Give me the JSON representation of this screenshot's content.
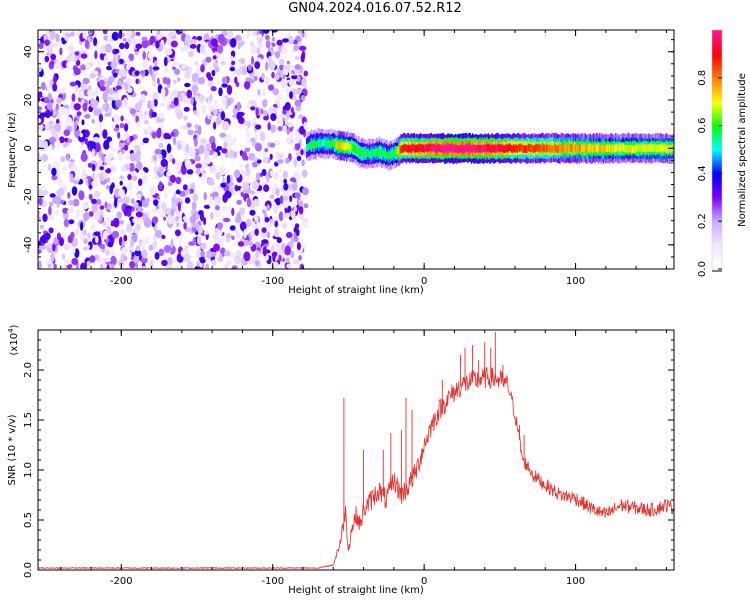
{
  "title": "GN04.2024.016.07.52.R12",
  "chart_data": [
    {
      "type": "heatmap",
      "xlabel": "Height of straight line (km)",
      "ylabel": "Frequency (Hz)",
      "xlim": [
        -255,
        165
      ],
      "ylim": [
        -50,
        49
      ],
      "xticks": [
        -200,
        -100,
        0,
        100
      ],
      "yticks": [
        -40,
        -20,
        0,
        20,
        40
      ],
      "grid": false,
      "colorbar": {
        "label": "Normalized spectral amplitude",
        "range": [
          0.0,
          1.0
        ],
        "ticks": [
          0.0,
          0.2,
          0.4,
          0.6,
          0.8
        ],
        "colormap": [
          "#ffffff",
          "#f0e6ff",
          "#c9a8ff",
          "#7b00ff",
          "#0000ff",
          "#00ffff",
          "#00ff00",
          "#ffff00",
          "#ff8000",
          "#ff0000",
          "#ff1493"
        ]
      },
      "noise_region_x": [
        -255,
        -78
      ],
      "signal_band": [
        {
          "x": -78,
          "y": 0.5,
          "amp": 0.5
        },
        {
          "x": -75,
          "y": 1.5,
          "amp": 0.6
        },
        {
          "x": -70,
          "y": 2.0,
          "amp": 0.55
        },
        {
          "x": -62,
          "y": 2.0,
          "amp": 0.55
        },
        {
          "x": -56,
          "y": 1.0,
          "amp": 0.75
        },
        {
          "x": -48,
          "y": 0.5,
          "amp": 0.65
        },
        {
          "x": -42,
          "y": -2.0,
          "amp": 0.6
        },
        {
          "x": -36,
          "y": -2.5,
          "amp": 0.55
        },
        {
          "x": -30,
          "y": -1.5,
          "amp": 0.6
        },
        {
          "x": -24,
          "y": -3.0,
          "amp": 0.55
        },
        {
          "x": -19,
          "y": -2.0,
          "amp": 0.6
        },
        {
          "x": -15,
          "y": 0.0,
          "amp": 0.9
        },
        {
          "x": 0,
          "y": 0.0,
          "amp": 0.95
        },
        {
          "x": 14,
          "y": 0.0,
          "amp": 1.0
        },
        {
          "x": 30,
          "y": 0.0,
          "amp": 1.0
        },
        {
          "x": 50,
          "y": 0.0,
          "amp": 0.95
        },
        {
          "x": 70,
          "y": 0.0,
          "amp": 0.85
        },
        {
          "x": 90,
          "y": 0.0,
          "amp": 0.8
        },
        {
          "x": 110,
          "y": 0.0,
          "amp": 0.75
        },
        {
          "x": 130,
          "y": 0.0,
          "amp": 0.7
        },
        {
          "x": 150,
          "y": 0.0,
          "amp": 0.7
        },
        {
          "x": 165,
          "y": 0.0,
          "amp": 0.7
        }
      ]
    },
    {
      "type": "line",
      "xlabel": "Height of straight line (km)",
      "ylabel": "SNR (10 * v/v)",
      "yscale_label": "(x10",
      "yscale_exp": "4",
      "yscale_close": ")",
      "xlim": [
        -255,
        165
      ],
      "ylim": [
        0,
        2.4
      ],
      "xticks": [
        -200,
        -100,
        0,
        100
      ],
      "yticks": [
        0.0,
        0.5,
        1.0,
        1.5,
        2.0
      ],
      "grid": false,
      "series": [
        {
          "color": "#e8302a",
          "x": [
            -255,
            -200,
            -150,
            -100,
            -70,
            -60,
            -55,
            -52,
            -50,
            -48,
            -45,
            -42,
            -40,
            -35,
            -30,
            -25,
            -20,
            -15,
            -10,
            -5,
            0,
            5,
            10,
            15,
            20,
            25,
            30,
            35,
            40,
            45,
            50,
            55,
            58,
            62,
            65,
            68,
            72,
            80,
            90,
            100,
            110,
            120,
            130,
            140,
            150,
            160,
            165
          ],
          "y": [
            0.02,
            0.02,
            0.02,
            0.02,
            0.02,
            0.05,
            0.3,
            0.6,
            0.2,
            0.4,
            0.55,
            0.45,
            0.6,
            0.7,
            0.8,
            0.7,
            0.9,
            0.75,
            0.85,
            1.0,
            1.25,
            1.45,
            1.6,
            1.7,
            1.78,
            1.85,
            1.88,
            1.9,
            1.92,
            1.92,
            1.9,
            1.85,
            1.7,
            1.4,
            1.1,
            1.05,
            0.95,
            0.85,
            0.75,
            0.72,
            0.62,
            0.55,
            0.65,
            0.62,
            0.6,
            0.65,
            0.62
          ]
        }
      ],
      "spikes": [
        {
          "x": -53,
          "y": 1.72
        },
        {
          "x": -40,
          "y": 1.2
        },
        {
          "x": -27,
          "y": 1.2
        },
        {
          "x": -22,
          "y": 1.37
        },
        {
          "x": -15,
          "y": 1.4
        },
        {
          "x": -12,
          "y": 1.72
        },
        {
          "x": -8,
          "y": 1.6
        },
        {
          "x": 12,
          "y": 1.9
        },
        {
          "x": 24,
          "y": 2.15
        },
        {
          "x": 27,
          "y": 2.22
        },
        {
          "x": 32,
          "y": 2.25
        },
        {
          "x": 36,
          "y": 2.1
        },
        {
          "x": 40,
          "y": 2.28
        },
        {
          "x": 44,
          "y": 2.22
        },
        {
          "x": 47,
          "y": 2.38
        },
        {
          "x": 52,
          "y": 2.05
        },
        {
          "x": 63,
          "y": 1.45
        },
        {
          "x": 66,
          "y": 1.35
        }
      ]
    }
  ]
}
